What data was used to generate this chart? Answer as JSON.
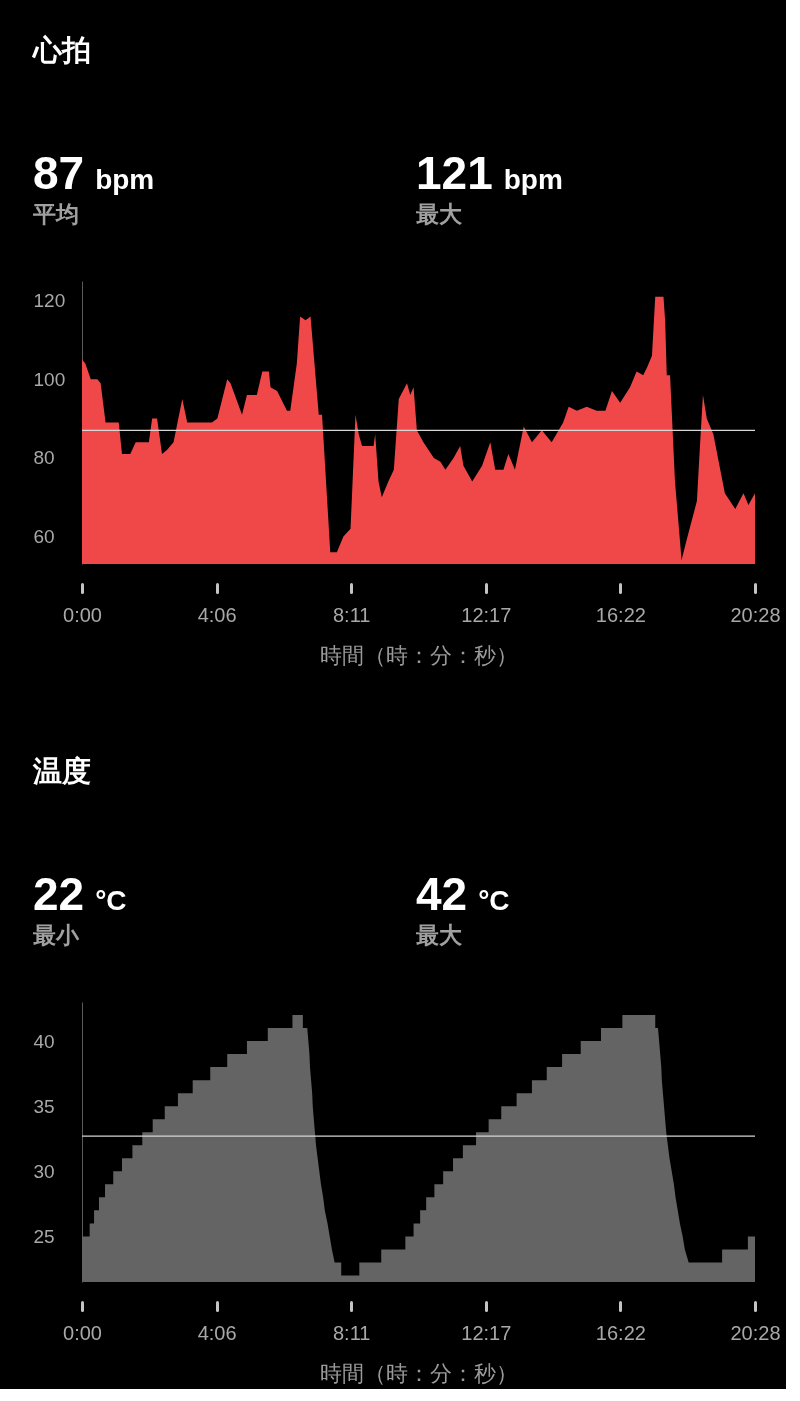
{
  "chart_data": [
    {
      "type": "area",
      "title": "心拍",
      "annotations": [
        "87 bpm",
        "平均",
        "121 bpm",
        "最大"
      ],
      "xlabel": "時間（時：分：秒）",
      "x": [
        0,
        6,
        16,
        28,
        34,
        43,
        67,
        73,
        88,
        98,
        122,
        128,
        137,
        146,
        155,
        167,
        183,
        192,
        237,
        247,
        265,
        271,
        292,
        301,
        319,
        329,
        341,
        344,
        356,
        374,
        380,
        392,
        398,
        408,
        417,
        423,
        432,
        438,
        453,
        465,
        477,
        490,
        499,
        505,
        511,
        532,
        535,
        541,
        547,
        559,
        569,
        578,
        593,
        599,
        605,
        611,
        623,
        642,
        654,
        663,
        678,
        690,
        696,
        712,
        730,
        745,
        754,
        769,
        778,
        790,
        806,
        821,
        839,
        857,
        878,
        888,
        903,
        921,
        939,
        955,
        967,
        982,
        1000,
        1012,
        1024,
        1031,
        1040,
        1046,
        1061,
        1064,
        1067,
        1073,
        1082,
        1094,
        1103,
        1122,
        1128,
        1133,
        1140,
        1152,
        1173,
        1192,
        1207,
        1216,
        1228
      ],
      "values": [
        105,
        104,
        100,
        100,
        99,
        89,
        89,
        81,
        81,
        84,
        84,
        90,
        90,
        81,
        82,
        84,
        95,
        89,
        89,
        90,
        100,
        99,
        91,
        96,
        96,
        102,
        102,
        98,
        97,
        92,
        92,
        104,
        116,
        115,
        116,
        106,
        91,
        91,
        56,
        56,
        60,
        62,
        91,
        86,
        83,
        83,
        86,
        74,
        70,
        74,
        77,
        95,
        99,
        96,
        98,
        87,
        84,
        80,
        79,
        77,
        80,
        83,
        78,
        74,
        78,
        84,
        77,
        77,
        81,
        77,
        88,
        84,
        87,
        84,
        89,
        93,
        92,
        93,
        92,
        92,
        97,
        94,
        98,
        102,
        101,
        103,
        106,
        121,
        121,
        115,
        101,
        101,
        74,
        54,
        59,
        69,
        84,
        96,
        90,
        86,
        71,
        67,
        71,
        68,
        71
      ],
      "color": "#f04848",
      "xlim": [
        0,
        1228
      ],
      "xticks": [
        {
          "value": 0,
          "label": "0:00"
        },
        {
          "value": 245.6,
          "label": "4:06"
        },
        {
          "value": 491.2,
          "label": "8:11"
        },
        {
          "value": 736.8,
          "label": "12:17"
        },
        {
          "value": 982.4,
          "label": "16:22"
        },
        {
          "value": 1228,
          "label": "20:28"
        }
      ],
      "ylim": [
        53,
        125
      ],
      "yticks": [
        60,
        80,
        100,
        120
      ],
      "ref_lines": [
        {
          "axis": "y",
          "value": 87,
          "color": "#d6d6d6"
        }
      ]
    },
    {
      "type": "area",
      "title": "温度",
      "annotations": [
        "22 °C",
        "最小",
        "42 °C",
        "最大"
      ],
      "xlabel": "時間（時：分：秒）",
      "x": [
        0,
        14,
        14,
        22,
        22,
        31,
        31,
        42,
        42,
        57,
        57,
        73,
        73,
        92,
        92,
        110,
        110,
        129,
        129,
        151,
        151,
        175,
        175,
        202,
        202,
        234,
        234,
        265,
        265,
        301,
        301,
        339,
        339,
        384,
        384,
        403,
        403,
        411,
        413,
        415,
        416,
        418,
        420,
        421,
        423,
        425,
        427,
        430,
        433,
        436,
        440,
        443,
        448,
        452,
        456,
        461,
        473,
        473,
        506,
        506,
        546,
        546,
        590,
        590,
        605,
        605,
        617,
        617,
        628,
        628,
        643,
        643,
        659,
        659,
        677,
        677,
        695,
        695,
        719,
        719,
        742,
        742,
        765,
        765,
        793,
        793,
        821,
        821,
        848,
        848,
        876,
        876,
        910,
        910,
        947,
        947,
        986,
        986,
        1046,
        1046,
        1051,
        1053,
        1055,
        1057,
        1058,
        1060,
        1062,
        1064,
        1066,
        1069,
        1072,
        1076,
        1080,
        1083,
        1087,
        1091,
        1096,
        1100,
        1107,
        1168,
        1168,
        1215,
        1215,
        1228
      ],
      "values": [
        25,
        25,
        26,
        26,
        27,
        27,
        28,
        28,
        29,
        29,
        30,
        30,
        31,
        31,
        32,
        32,
        33,
        33,
        34,
        34,
        35,
        35,
        36,
        36,
        37,
        37,
        38,
        38,
        39,
        39,
        40,
        40,
        41,
        41,
        42,
        42,
        41,
        41,
        40,
        39,
        38,
        37,
        36,
        35,
        34,
        33,
        32,
        31,
        30,
        29,
        28,
        27,
        26,
        25,
        24,
        23,
        23,
        22,
        22,
        23,
        23,
        24,
        24,
        25,
        25,
        26,
        26,
        27,
        27,
        28,
        28,
        29,
        29,
        30,
        30,
        31,
        31,
        32,
        32,
        33,
        33,
        34,
        34,
        35,
        35,
        36,
        36,
        37,
        37,
        38,
        38,
        39,
        39,
        40,
        40,
        41,
        41,
        42,
        42,
        41,
        41,
        40,
        39,
        38,
        37,
        36,
        35,
        34,
        33,
        32,
        31,
        30,
        29,
        28,
        27,
        26,
        25,
        24,
        23,
        23,
        24,
        24,
        25,
        25
      ],
      "color": "#646464",
      "xlim": [
        0,
        1228
      ],
      "xticks": [
        {
          "value": 0,
          "label": "0:00"
        },
        {
          "value": 245.6,
          "label": "4:06"
        },
        {
          "value": 491.2,
          "label": "8:11"
        },
        {
          "value": 736.8,
          "label": "12:17"
        },
        {
          "value": 982.4,
          "label": "16:22"
        },
        {
          "value": 1228,
          "label": "20:28"
        }
      ],
      "ylim": [
        21.5,
        43
      ],
      "yticks": [
        25,
        30,
        35,
        40
      ],
      "ref_lines": [
        {
          "axis": "y",
          "value": 32.7,
          "color": "#d6d6d6"
        }
      ]
    }
  ]
}
